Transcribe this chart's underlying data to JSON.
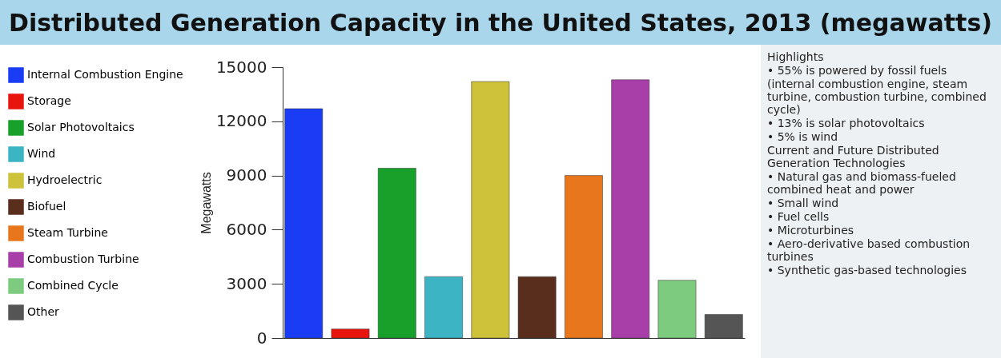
{
  "chart_data": {
    "type": "bar",
    "title": "Distributed Generation Capacity in the United States, 2013 (megawatts)",
    "ylabel": "Megawatts",
    "categories": [
      null,
      null,
      null,
      null,
      null,
      null,
      null,
      null,
      null,
      null
    ],
    "series": [
      {
        "name": "Internal Combustion Engine",
        "color": "#1a3cf5",
        "values": [
          12700,
          null,
          null,
          null,
          null,
          null,
          null,
          null,
          null,
          null
        ]
      },
      {
        "name": "Storage",
        "color": "#e8150f",
        "values": [
          null,
          500,
          null,
          null,
          null,
          null,
          null,
          null,
          null,
          null
        ]
      },
      {
        "name": "Solar Photovoltaics",
        "color": "#17a02a",
        "values": [
          null,
          null,
          9400,
          null,
          null,
          null,
          null,
          null,
          null,
          null
        ]
      },
      {
        "name": "Wind",
        "color": "#3cb4c4",
        "values": [
          null,
          null,
          null,
          3400,
          null,
          null,
          null,
          null,
          null,
          null
        ]
      },
      {
        "name": "Hydroelectric",
        "color": "#cdc23a",
        "values": [
          null,
          null,
          null,
          null,
          14200,
          null,
          null,
          null,
          null,
          null
        ]
      },
      {
        "name": "Biofuel",
        "color": "#5a2e1c",
        "values": [
          null,
          null,
          null,
          null,
          null,
          3400,
          null,
          null,
          null,
          null
        ]
      },
      {
        "name": "Steam Turbine",
        "color": "#e8761c",
        "values": [
          null,
          null,
          null,
          null,
          null,
          null,
          9000,
          null,
          null,
          null
        ]
      },
      {
        "name": "Combustion Turbine",
        "color": "#a83ea8",
        "values": [
          null,
          null,
          null,
          null,
          null,
          null,
          null,
          14300,
          null,
          null
        ]
      },
      {
        "name": "Combined Cycle",
        "color": "#7ccb7e",
        "values": [
          null,
          null,
          null,
          null,
          null,
          null,
          null,
          null,
          3200,
          null
        ]
      },
      {
        "name": "Other",
        "color": "#555555",
        "values": [
          null,
          null,
          null,
          null,
          null,
          null,
          null,
          null,
          null,
          1300
        ]
      }
    ],
    "ylim": [
      0,
      15000
    ],
    "yticks": [
      0,
      3000,
      6000,
      9000,
      12000,
      15000
    ],
    "grid": false,
    "legend": "left",
    "tick_labels": "y",
    "annotations": [
      "Highlights",
      "• 55% is powered by fossil fuels",
      "(internal combustion engine, steam turbine, combustion turbine, combined cycle)",
      "• 13% is solar photovoltaics",
      "• 5% is wind",
      "Current and Future Distributed Generation Technologies",
      "• Natural gas and biomass-fueled combined heat and power",
      "• Small wind",
      "• Fuel cells",
      "• Microturbines",
      "• Aero-derivative based combustion turbines",
      "• Synthetic gas-based technologies"
    ]
  }
}
